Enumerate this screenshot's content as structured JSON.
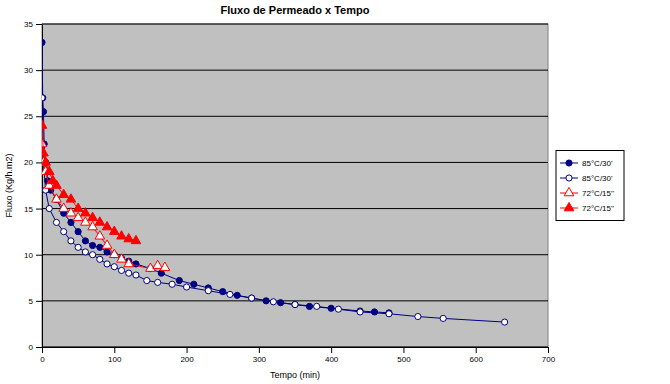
{
  "chart_data": {
    "type": "line",
    "title": "Fluxo de Permeado x Tempo",
    "x_label": "Tempo (min)",
    "y_label": "Fluxo (Kg/h.m2)",
    "xlim": [
      0,
      700
    ],
    "xticks": [
      0,
      100,
      200,
      300,
      400,
      500,
      600,
      700
    ],
    "ylim": [
      0,
      35
    ],
    "yticks": [
      0,
      5,
      10,
      15,
      20,
      25,
      30,
      35
    ],
    "grid": true,
    "legend": "right",
    "series": [
      {
        "name": "85°C/30'",
        "color": "#000080",
        "marker": "circle",
        "line_style": "solid",
        "x": [
          0,
          1,
          2,
          3,
          5,
          8,
          12,
          20,
          30,
          40,
          50,
          60,
          70,
          80,
          90,
          100,
          110,
          120,
          130,
          150,
          165,
          190,
          210,
          230,
          250,
          270,
          290,
          310,
          330,
          350,
          370,
          400,
          440,
          460,
          480
        ],
        "values": [
          33,
          27,
          25.5,
          22,
          20,
          18,
          17,
          16,
          14.5,
          13.5,
          12.5,
          11.5,
          11,
          10.8,
          10.3,
          10,
          9.6,
          9.3,
          9,
          8.5,
          8,
          7.2,
          6.8,
          6.4,
          6,
          5.6,
          5.3,
          5,
          4.8,
          4.6,
          4.4,
          4.2,
          3.9,
          3.8,
          3.7
        ]
      },
      {
        "name": "85°C/30'",
        "color": "#000080",
        "marker": "circle-open",
        "line_style": "solid",
        "x": [
          0,
          2,
          5,
          10,
          20,
          30,
          40,
          50,
          60,
          70,
          80,
          90,
          100,
          110,
          120,
          130,
          145,
          160,
          180,
          200,
          230,
          260,
          290,
          320,
          350,
          380,
          410,
          440,
          480,
          520,
          555,
          640
        ],
        "values": [
          27,
          20,
          17,
          15,
          13.5,
          12.5,
          11.5,
          10.8,
          10.3,
          10,
          9.5,
          9,
          8.7,
          8.3,
          8,
          7.8,
          7.2,
          7,
          6.8,
          6.5,
          6.1,
          5.7,
          5.3,
          4.9,
          4.6,
          4.4,
          4.1,
          3.8,
          3.6,
          3.3,
          3.1,
          2.7
        ]
      },
      {
        "name": "72°C/15''",
        "color": "#ff0000",
        "marker": "triangle-open",
        "line_style": "solid",
        "x": [
          0,
          2,
          5,
          10,
          20,
          30,
          40,
          50,
          60,
          70,
          80,
          90,
          100,
          110,
          120,
          150,
          160,
          170
        ],
        "values": [
          22,
          20,
          19,
          17.5,
          16,
          15,
          14.5,
          14,
          13.5,
          13,
          12,
          11,
          10,
          9.5,
          9,
          8.5,
          8.8,
          8.6
        ]
      },
      {
        "name": "72°C/15''",
        "color": "#ff0000",
        "marker": "triangle",
        "line_style": "solid",
        "x": [
          0,
          2,
          5,
          10,
          15,
          20,
          30,
          40,
          50,
          60,
          70,
          80,
          90,
          100,
          110,
          120,
          130
        ],
        "values": [
          24,
          21,
          20,
          19,
          18,
          17.5,
          16.5,
          16,
          15,
          14.5,
          14,
          13.5,
          13,
          12.5,
          12,
          11.7,
          11.5
        ]
      }
    ]
  }
}
